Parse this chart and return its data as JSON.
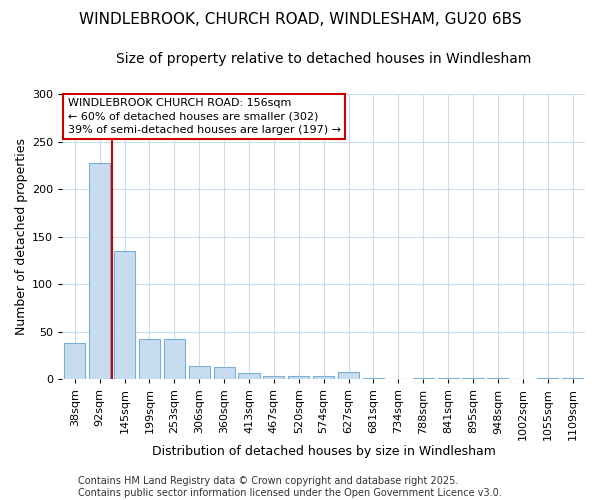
{
  "title1": "WINDLEBROOK, CHURCH ROAD, WINDLESHAM, GU20 6BS",
  "title2": "Size of property relative to detached houses in Windlesham",
  "xlabel": "Distribution of detached houses by size in Windlesham",
  "ylabel": "Number of detached properties",
  "categories": [
    "38sqm",
    "92sqm",
    "145sqm",
    "199sqm",
    "253sqm",
    "306sqm",
    "360sqm",
    "413sqm",
    "467sqm",
    "520sqm",
    "574sqm",
    "627sqm",
    "681sqm",
    "734sqm",
    "788sqm",
    "841sqm",
    "895sqm",
    "948sqm",
    "1002sqm",
    "1055sqm",
    "1109sqm"
  ],
  "values": [
    38,
    228,
    135,
    42,
    42,
    14,
    13,
    7,
    4,
    4,
    4,
    8,
    2,
    0,
    2,
    1,
    1,
    1,
    0,
    1,
    2
  ],
  "bar_color": "#c8dcf0",
  "bar_edge_color": "#7bafd4",
  "ref_line_x": 1.5,
  "ref_line_color": "#cc0000",
  "annotation_text": "WINDLEBROOK CHURCH ROAD: 156sqm\n← 60% of detached houses are smaller (302)\n39% of semi-detached houses are larger (197) →",
  "annotation_box_color": "#ffffff",
  "annotation_box_edge": "#cc0000",
  "ylim": [
    0,
    300
  ],
  "yticks": [
    0,
    50,
    100,
    150,
    200,
    250,
    300
  ],
  "footer": "Contains HM Land Registry data © Crown copyright and database right 2025.\nContains public sector information licensed under the Open Government Licence v3.0.",
  "bg_color": "#ffffff",
  "plot_bg_color": "#ffffff",
  "grid_color": "#c8dcf0",
  "title1_fontsize": 11,
  "title2_fontsize": 10,
  "axis_label_fontsize": 9,
  "tick_fontsize": 8,
  "footer_fontsize": 7,
  "annot_fontsize": 8
}
